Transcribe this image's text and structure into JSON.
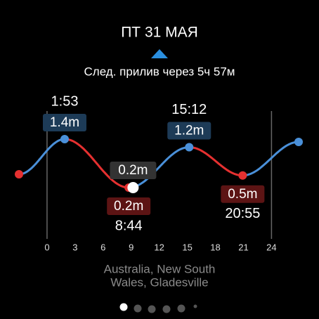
{
  "header": {
    "date": "ПТ 31 МАЯ",
    "next_tide": "След. прилив через 5ч 57м"
  },
  "chart_data": {
    "type": "line",
    "x": [
      -3,
      1.883,
      8.733,
      15.2,
      20.917,
      26.9
    ],
    "values": [
      0.53,
      1.4,
      0.2,
      1.2,
      0.5,
      1.33
    ],
    "value_labels": [
      null,
      "1.4m",
      "0.2m",
      "1.2m",
      "0.5m",
      null
    ],
    "time_labels": [
      null,
      "1:53",
      "8:44",
      "15:12",
      "20:55",
      null
    ],
    "current": {
      "x": 9.2,
      "value": 0.2,
      "label": "0.2m"
    },
    "xlim": [
      -3,
      26.9
    ],
    "xticks": [
      0,
      3,
      6,
      9,
      12,
      15,
      18,
      21,
      24
    ],
    "ylim": [
      0,
      1.6
    ],
    "rise_color": "#4a90d9",
    "fall_color": "#e53030",
    "high_box": "#1d3b57",
    "low_box": "#5c1414",
    "current_box": "#333333"
  },
  "location": {
    "line1": "Australia, New South",
    "line2": "Wales, Gladesville"
  }
}
